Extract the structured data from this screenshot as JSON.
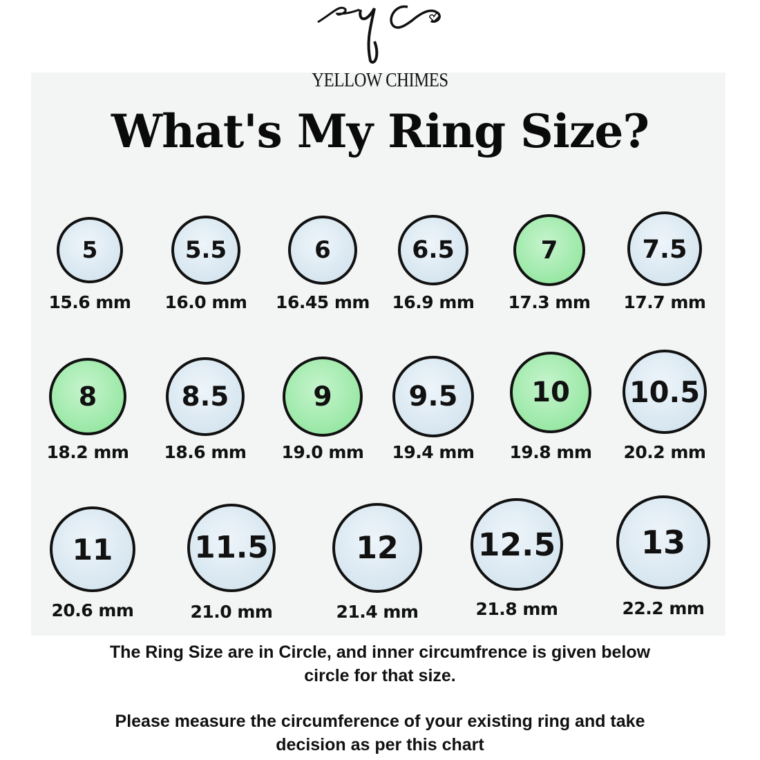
{
  "brand": {
    "logo_monogram": "yc",
    "name": "YELLOW CHIMES"
  },
  "title": "What's My Ring Size?",
  "colors": {
    "highlight": "#9ae8a6",
    "default": "#d7e6f0",
    "outline": "#111111"
  },
  "sizes": [
    {
      "size": "5",
      "mm": "15.6 mm",
      "highlighted": false
    },
    {
      "size": "5.5",
      "mm": "16.0 mm",
      "highlighted": false
    },
    {
      "size": "6",
      "mm": "16.45 mm",
      "highlighted": false
    },
    {
      "size": "6.5",
      "mm": "16.9 mm",
      "highlighted": false
    },
    {
      "size": "7",
      "mm": "17.3 mm",
      "highlighted": true
    },
    {
      "size": "7.5",
      "mm": "17.7 mm",
      "highlighted": false
    },
    {
      "size": "8",
      "mm": "18.2 mm",
      "highlighted": true
    },
    {
      "size": "8.5",
      "mm": "18.6 mm",
      "highlighted": false
    },
    {
      "size": "9",
      "mm": "19.0 mm",
      "highlighted": true
    },
    {
      "size": "9.5",
      "mm": "19.4 mm",
      "highlighted": false
    },
    {
      "size": "10",
      "mm": "19.8 mm",
      "highlighted": true
    },
    {
      "size": "10.5",
      "mm": "20.2 mm",
      "highlighted": false
    },
    {
      "size": "11",
      "mm": "20.6 mm",
      "highlighted": false
    },
    {
      "size": "11.5",
      "mm": "21.0 mm",
      "highlighted": false
    },
    {
      "size": "12",
      "mm": "21.4 mm",
      "highlighted": false
    },
    {
      "size": "12.5",
      "mm": "21.8 mm",
      "highlighted": false
    },
    {
      "size": "13",
      "mm": "22.2 mm",
      "highlighted": false
    }
  ],
  "notes": {
    "line1a": "The Ring Size are in Circle, and inner circumfrence is  given below",
    "line1b": "circle for that size.",
    "line2a": "Please measure the circumference of your existing ring and take",
    "line2b": "decision as per this chart"
  }
}
